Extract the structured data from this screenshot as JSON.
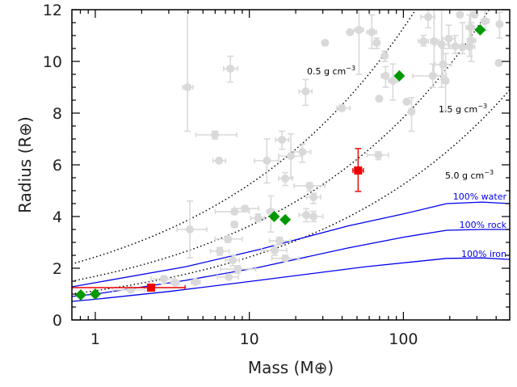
{
  "chart_data": {
    "type": "scatter",
    "xlabel": "Mass (M⊕)",
    "ylabel": "Radius (R⊕)",
    "xscale": "log",
    "xlim": [
      0.705,
      490
    ],
    "ylim": [
      0,
      12
    ],
    "x_ticks": [
      "1",
      "10",
      "100"
    ],
    "y_ticks": [
      "0",
      "2",
      "4",
      "6",
      "8",
      "10",
      "12"
    ],
    "grid": false,
    "colors": {
      "background_points": "#d9d9d9",
      "green": "#009900",
      "red": "#ee0000",
      "model": "#0000ee",
      "density": "#000000"
    },
    "background_points": [
      {
        "m": 3.97,
        "r": 9.0,
        "xerr": [
          3.7,
          4.3
        ],
        "yerr": [
          7.3,
          11.9
        ]
      },
      {
        "m": 7.53,
        "r": 9.72,
        "xerr": [
          6.8,
          8.4
        ],
        "yerr": [
          9.2,
          10.2
        ]
      },
      {
        "m": 5.98,
        "r": 7.16,
        "xerr": [
          4.5,
          8.3
        ],
        "yerr": [
          7.0,
          7.3
        ]
      },
      {
        "m": 6.36,
        "r": 6.16,
        "xerr": [
          5.8,
          7.0
        ],
        "yerr": [
          6.1,
          6.2
        ]
      },
      {
        "m": 16.3,
        "r": 6.97,
        "xerr": [
          14.8,
          18.0
        ],
        "yerr": [
          6.6,
          7.3
        ]
      },
      {
        "m": 22.1,
        "r": 6.5,
        "xerr": [
          19.5,
          25.0
        ],
        "yerr": [
          6.1,
          6.8
        ]
      },
      {
        "m": 18.6,
        "r": 6.34,
        "xerr": [
          15.5,
          22.0
        ],
        "yerr": [
          5.5,
          7.2
        ]
      },
      {
        "m": 13.0,
        "r": 6.16,
        "xerr": [
          10.8,
          15.5
        ],
        "yerr": [
          5.3,
          7.0
        ]
      },
      {
        "m": 17.1,
        "r": 5.47,
        "xerr": [
          15.5,
          19.0
        ],
        "yerr": [
          5.2,
          5.7
        ]
      },
      {
        "m": 24.6,
        "r": 5.19,
        "xerr": [
          19.5,
          31.0
        ],
        "yerr": [
          5.0,
          5.3
        ]
      },
      {
        "m": 26.1,
        "r": 4.75,
        "xerr": [
          23.5,
          29.0
        ],
        "yerr": [
          4.5,
          4.9
        ]
      },
      {
        "m": 9.36,
        "r": 4.31,
        "xerr": [
          8.0,
          11.5
        ],
        "yerr": [
          4.2,
          4.4
        ]
      },
      {
        "m": 8.0,
        "r": 4.19,
        "xerr": [
          6.0,
          10.0
        ],
        "yerr": [
          4.1,
          4.3
        ]
      },
      {
        "m": 13.8,
        "r": 4.19,
        "xerr": [
          13.0,
          14.5
        ],
        "yerr": [
          3.4,
          4.8
        ]
      },
      {
        "m": 23.4,
        "r": 4.06,
        "xerr": [
          21.0,
          26.0
        ],
        "yerr": [
          3.8,
          4.3
        ]
      },
      {
        "m": 26.1,
        "r": 4.0,
        "xerr": [
          24.0,
          30.0
        ],
        "yerr": [
          3.8,
          4.2
        ]
      },
      {
        "m": 11.4,
        "r": 3.94,
        "xerr": [
          10.2,
          12.5
        ],
        "yerr": [
          3.8,
          4.1
        ]
      },
      {
        "m": 8.0,
        "r": 3.69,
        "xerr": [
          7.7,
          8.3
        ],
        "yerr": [
          3.6,
          3.8
        ]
      },
      {
        "m": 4.11,
        "r": 3.5,
        "xerr": [
          3.4,
          5.3
        ],
        "yerr": [
          2.4,
          4.6
        ]
      },
      {
        "m": 7.26,
        "r": 3.13,
        "xerr": [
          6.0,
          9.0
        ],
        "yerr": [
          3.0,
          3.2
        ]
      },
      {
        "m": 15.7,
        "r": 3.06,
        "xerr": [
          13.5,
          18.5
        ],
        "yerr": [
          2.9,
          3.2
        ]
      },
      {
        "m": 6.43,
        "r": 2.66,
        "xerr": [
          5.6,
          7.4
        ],
        "yerr": [
          2.5,
          2.8
        ]
      },
      {
        "m": 14.6,
        "r": 2.69,
        "xerr": [
          12.0,
          17.5
        ],
        "yerr": [
          2.5,
          2.9
        ]
      },
      {
        "m": 7.8,
        "r": 2.31,
        "xerr": [
          7.0,
          8.6
        ],
        "yerr": [
          2.1,
          2.5
        ]
      },
      {
        "m": 17.1,
        "r": 2.38,
        "xerr": [
          14.0,
          21.0
        ],
        "yerr": [
          2.3,
          2.5
        ]
      },
      {
        "m": 8.4,
        "r": 1.97,
        "xerr": [
          6.5,
          11.0
        ],
        "yerr": [
          1.8,
          2.1
        ]
      },
      {
        "m": 7.35,
        "r": 1.66,
        "xerr": [
          6.2,
          8.5
        ],
        "yerr": [
          1.6,
          1.7
        ]
      },
      {
        "m": 1.7,
        "r": 1.16,
        "xerr": [
          1.3,
          2.1
        ],
        "yerr": [
          1.1,
          1.2
        ]
      },
      {
        "m": 2.79,
        "r": 1.59,
        "xerr": [
          2.3,
          3.3
        ],
        "yerr": [
          1.4,
          1.7
        ]
      },
      {
        "m": 3.31,
        "r": 1.44,
        "xerr": [
          3.1,
          3.5
        ],
        "yerr": [
          1.4,
          1.5
        ]
      },
      {
        "m": 4.48,
        "r": 1.47,
        "xerr": [
          4.2,
          4.8
        ],
        "yerr": [
          1.4,
          1.5
        ]
      },
      {
        "m": 45.0,
        "r": 11.13
      },
      {
        "m": 51.5,
        "r": 11.22,
        "xerr": [
          48,
          55
        ],
        "yerr": [
          9.5,
          12.0
        ]
      },
      {
        "m": 62.4,
        "r": 11.13,
        "xerr": [
          58,
          67
        ],
        "yerr": [
          10.5,
          11.8
        ]
      },
      {
        "m": 67.1,
        "r": 10.72,
        "xerr": [
          64,
          70
        ],
        "yerr": [
          10.5,
          10.9
        ]
      },
      {
        "m": 31.0,
        "r": 10.72
      },
      {
        "m": 75.7,
        "r": 10.22,
        "xerr": [
          74,
          78
        ],
        "yerr": [
          10.0,
          10.4
        ]
      },
      {
        "m": 76.7,
        "r": 9.44,
        "xerr": [
          72,
          80
        ],
        "yerr": [
          9.0,
          9.8
        ]
      },
      {
        "m": 85.5,
        "r": 9.25,
        "xerr": [
          80,
          92
        ],
        "yerr": [
          8.5,
          9.9
        ]
      },
      {
        "m": 69.6,
        "r": 8.56
      },
      {
        "m": 105,
        "r": 8.44
      },
      {
        "m": 113,
        "r": 8.06,
        "xerr": [
          109,
          117
        ],
        "yerr": [
          7.3,
          8.6
        ]
      },
      {
        "m": 39.9,
        "r": 8.19,
        "xerr": [
          37,
          45
        ],
        "yerr": [
          8.1,
          8.3
        ]
      },
      {
        "m": 23.2,
        "r": 8.84,
        "xerr": [
          21,
          25.5
        ],
        "yerr": [
          8.3,
          9.3
        ]
      },
      {
        "m": 68.8,
        "r": 6.38,
        "xerr": [
          58,
          80
        ],
        "yerr": [
          6.2,
          6.5
        ]
      },
      {
        "m": 145,
        "r": 11.72,
        "xerr": [
          130,
          160
        ],
        "yerr": [
          11.3,
          12.0
        ]
      },
      {
        "m": 135,
        "r": 10.78,
        "xerr": [
          125,
          145
        ],
        "yerr": [
          10.6,
          11.0
        ]
      },
      {
        "m": 158,
        "r": 10.78,
        "xerr": [
          150,
          170
        ],
        "yerr": [
          9.5,
          12.0
        ]
      },
      {
        "m": 177,
        "r": 10.66,
        "xerr": [
          160,
          195
        ],
        "yerr": [
          9.0,
          12.0
        ]
      },
      {
        "m": 197,
        "r": 10.88,
        "xerr": [
          180,
          215
        ],
        "yerr": [
          10.5,
          11.4
        ]
      },
      {
        "m": 217,
        "r": 10.59,
        "xerr": [
          200,
          235
        ],
        "yerr": [
          10.3,
          11.0
        ]
      },
      {
        "m": 242,
        "r": 10.56,
        "xerr": [
          225,
          260
        ],
        "yerr": [
          10.3,
          11.5
        ]
      },
      {
        "m": 269,
        "r": 10.56,
        "xerr": [
          250,
          290
        ],
        "yerr": [
          10.2,
          11.8
        ]
      },
      {
        "m": 276,
        "r": 10.81,
        "xerr": [
          260,
          295
        ],
        "yerr": [
          10.0,
          11.5
        ]
      },
      {
        "m": 273,
        "r": 11.31,
        "xerr": [
          255,
          290
        ],
        "yerr": [
          10.9,
          12.0
        ]
      },
      {
        "m": 339,
        "r": 11.56,
        "xerr": [
          320,
          360
        ],
        "yerr": [
          11.2,
          12.0
        ]
      },
      {
        "m": 421,
        "r": 11.44,
        "yerr": [
          10.9,
          11.9
        ]
      },
      {
        "m": 181,
        "r": 9.88,
        "xerr": [
          160,
          205
        ],
        "yerr": [
          9.3,
          10.5
        ]
      },
      {
        "m": 155,
        "r": 9.44,
        "xerr": [
          115,
          190
        ],
        "yerr": [
          9.0,
          9.9
        ]
      },
      {
        "m": 188,
        "r": 9.25,
        "xerr": [
          180,
          196
        ],
        "yerr": [
          8.1,
          10.3
        ]
      },
      {
        "m": 416,
        "r": 9.94
      },
      {
        "m": 233,
        "r": 11.81
      },
      {
        "m": 290,
        "r": 11.81
      }
    ],
    "green_points": [
      {
        "m": 0.805,
        "r": 0.97
      },
      {
        "m": 1.0,
        "r": 1.0
      },
      {
        "m": 14.5,
        "r": 4.0
      },
      {
        "m": 17.1,
        "r": 3.88
      },
      {
        "m": 94.1,
        "r": 9.44
      },
      {
        "m": 315,
        "r": 11.22
      }
    ],
    "red_points": [
      {
        "m": 2.3,
        "r": 1.25,
        "xerr": [
          0.705,
          3.83
        ],
        "yerr": [
          1.18,
          1.35
        ]
      },
      {
        "m": 50.8,
        "r": 5.78,
        "xerr": [
          47,
          55
        ],
        "yerr": [
          4.97,
          6.63
        ]
      }
    ],
    "density_curves": [
      {
        "label": "0.5 g cm",
        "sup": "−3",
        "rho": 0.5
      },
      {
        "label": "1.5 g cm",
        "sup": "−3",
        "rho": 1.5
      },
      {
        "label": "5.0 g cm",
        "sup": "−3",
        "rho": 5.0
      }
    ],
    "composition_curves": [
      {
        "label": "100% water",
        "points": [
          [
            0.705,
            1.28
          ],
          [
            1,
            1.44
          ],
          [
            3.87,
            2.06
          ],
          [
            11.5,
            2.72
          ],
          [
            21.8,
            3.16
          ],
          [
            43.5,
            3.63
          ],
          [
            100,
            4.1
          ],
          [
            191,
            4.5
          ],
          [
            326,
            4.56
          ],
          [
            490,
            4.5
          ]
        ]
      },
      {
        "label": "100% rock",
        "points": [
          [
            0.705,
            0.91
          ],
          [
            1,
            1.0
          ],
          [
            3.87,
            1.53
          ],
          [
            11.5,
            2.03
          ],
          [
            43.5,
            2.78
          ],
          [
            100,
            3.2
          ],
          [
            191,
            3.47
          ],
          [
            326,
            3.5
          ],
          [
            490,
            3.5
          ]
        ]
      },
      {
        "label": "100% iron",
        "points": [
          [
            0.705,
            0.72
          ],
          [
            1,
            0.8
          ],
          [
            3,
            1.1
          ],
          [
            8.7,
            1.44
          ],
          [
            11.5,
            1.53
          ],
          [
            57,
            2.06
          ],
          [
            191,
            2.38
          ],
          [
            326,
            2.4
          ],
          [
            490,
            2.34
          ]
        ]
      }
    ]
  }
}
